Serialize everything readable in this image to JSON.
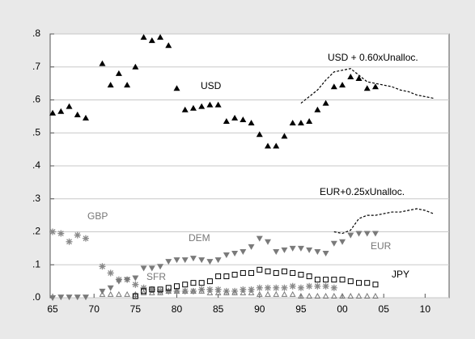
{
  "chart_data": {
    "type": "scatter",
    "xlim": [
      1964.7,
      2012.9
    ],
    "ylim": [
      0,
      0.8
    ],
    "grid": true,
    "xticks": [
      {
        "value": 1965,
        "label": "65"
      },
      {
        "value": 1970,
        "label": "70"
      },
      {
        "value": 1975,
        "label": "75"
      },
      {
        "value": 1980,
        "label": "80"
      },
      {
        "value": 1985,
        "label": "85"
      },
      {
        "value": 1990,
        "label": "90"
      },
      {
        "value": 1995,
        "label": "95"
      },
      {
        "value": 2000,
        "label": "00"
      },
      {
        "value": 2005,
        "label": "05"
      },
      {
        "value": 2010,
        "label": "10"
      }
    ],
    "yticks": [
      {
        "value": 0,
        "label": ".0"
      },
      {
        "value": 0.1,
        "label": ".1"
      },
      {
        "value": 0.2,
        "label": ".2"
      },
      {
        "value": 0.3,
        "label": ".3"
      },
      {
        "value": 0.4,
        "label": ".4"
      },
      {
        "value": 0.5,
        "label": ".5"
      },
      {
        "value": 0.6,
        "label": ".6"
      },
      {
        "value": 0.7,
        "label": ".7"
      },
      {
        "value": 0.8,
        "label": ".8"
      }
    ],
    "series": [
      {
        "name": "USD",
        "color": "#000000",
        "marker": "triangle-up",
        "x": [
          1965,
          1966,
          1967,
          1968,
          1969,
          1971,
          1972,
          1973,
          1974,
          1975,
          1976,
          1977,
          1978,
          1979,
          1980,
          1981,
          1982,
          1983,
          1984,
          1985,
          1986,
          1987,
          1988,
          1989,
          1990,
          1991,
          1992,
          1993,
          1994,
          1995,
          1996,
          1997,
          1998,
          1999,
          2000,
          2001,
          2002,
          2003,
          2004
        ],
        "values": [
          0.56,
          0.565,
          0.58,
          0.555,
          0.545,
          0.71,
          0.645,
          0.68,
          0.645,
          0.7,
          0.79,
          0.78,
          0.79,
          0.765,
          0.635,
          0.57,
          0.575,
          0.58,
          0.585,
          0.585,
          0.535,
          0.545,
          0.54,
          0.53,
          0.495,
          0.46,
          0.46,
          0.49,
          0.53,
          0.53,
          0.535,
          0.57,
          0.59,
          0.64,
          0.645,
          0.67,
          0.665,
          0.635,
          0.64
        ]
      },
      {
        "name": "USD + 0.60xUnalloc.",
        "color": "#000000",
        "marker": "dashed",
        "x": [
          1995,
          1996,
          1997,
          1998,
          1999,
          2000,
          2001,
          2002,
          2003,
          2004,
          2005,
          2006,
          2007,
          2008,
          2009,
          2010,
          2011
        ],
        "values": [
          0.59,
          0.61,
          0.63,
          0.66,
          0.685,
          0.69,
          0.695,
          0.675,
          0.655,
          0.65,
          0.645,
          0.64,
          0.63,
          0.625,
          0.615,
          0.61,
          0.605
        ]
      },
      {
        "name": "EUR+0.25xUnalloc.",
        "color": "#000000",
        "marker": "dashed",
        "x": [
          1999,
          2000,
          2001,
          2002,
          2003,
          2004,
          2005,
          2006,
          2007,
          2008,
          2009,
          2010,
          2011
        ],
        "values": [
          0.2,
          0.195,
          0.205,
          0.24,
          0.25,
          0.25,
          0.255,
          0.26,
          0.26,
          0.265,
          0.27,
          0.265,
          0.255
        ]
      },
      {
        "name": "GBP",
        "color": "#8a8a8a",
        "marker": "asterisk",
        "x": [
          1965,
          1966,
          1967,
          1968,
          1969,
          1971,
          1972,
          1973,
          1974,
          1975,
          1976,
          1977,
          1978,
          1979,
          1980,
          1981,
          1982,
          1983,
          1984,
          1985,
          1986,
          1987,
          1988,
          1989,
          1990,
          1991,
          1992,
          1993,
          1994,
          1995,
          1996,
          1997,
          1998,
          1999
        ],
        "values": [
          0.2,
          0.195,
          0.17,
          0.19,
          0.18,
          0.095,
          0.075,
          0.055,
          0.055,
          0.04,
          0.03,
          0.025,
          0.02,
          0.02,
          0.02,
          0.02,
          0.02,
          0.025,
          0.025,
          0.025,
          0.02,
          0.02,
          0.025,
          0.025,
          0.03,
          0.03,
          0.03,
          0.03,
          0.035,
          0.03,
          0.035,
          0.035,
          0.035,
          0.03
        ]
      },
      {
        "name": "DEM",
        "color": "#7a7a7a",
        "marker": "triangle-down",
        "x": [
          1965,
          1966,
          1967,
          1968,
          1969,
          1971,
          1972,
          1973,
          1974,
          1975,
          1976,
          1977,
          1978,
          1979,
          1980,
          1981,
          1982,
          1983,
          1984,
          1985,
          1986,
          1987,
          1988,
          1989,
          1990,
          1991,
          1992,
          1993,
          1994,
          1995,
          1996,
          1997,
          1998
        ],
        "values": [
          0,
          0.002,
          0.002,
          0.002,
          0.002,
          0.02,
          0.03,
          0.05,
          0.055,
          0.06,
          0.09,
          0.09,
          0.095,
          0.11,
          0.115,
          0.115,
          0.12,
          0.115,
          0.11,
          0.115,
          0.13,
          0.135,
          0.14,
          0.155,
          0.18,
          0.17,
          0.14,
          0.145,
          0.15,
          0.15,
          0.145,
          0.14,
          0.135
        ]
      },
      {
        "name": "EUR",
        "color": "#7a7a7a",
        "marker": "triangle-down",
        "x": [
          1999,
          2000,
          2001,
          2002,
          2003,
          2004
        ],
        "values": [
          0.165,
          0.17,
          0.19,
          0.195,
          0.195,
          0.195
        ]
      },
      {
        "name": "SFR",
        "color": "#7a7a7a",
        "marker": "triangle-open",
        "x": [
          1971,
          1972,
          1973,
          1974,
          1975,
          1976,
          1977,
          1978,
          1979,
          1980,
          1981,
          1982,
          1983,
          1984,
          1985,
          1986,
          1987,
          1988,
          1989,
          1990,
          1991,
          1992,
          1993,
          1994,
          1995,
          1996,
          1997,
          1998,
          1999,
          2000,
          2001,
          2002,
          2003,
          2004
        ],
        "values": [
          0.01,
          0.01,
          0.01,
          0.01,
          0.01,
          0.015,
          0.015,
          0.015,
          0.02,
          0.02,
          0.02,
          0.02,
          0.02,
          0.015,
          0.015,
          0.015,
          0.015,
          0.015,
          0.015,
          0.01,
          0.01,
          0.01,
          0.01,
          0.01,
          0.005,
          0.005,
          0.005,
          0.005,
          0.005,
          0.005,
          0.005,
          0.005,
          0.005,
          0.005
        ]
      },
      {
        "name": "JPY",
        "color": "#000000",
        "marker": "square-open",
        "x": [
          1975,
          1976,
          1977,
          1978,
          1979,
          1980,
          1981,
          1982,
          1983,
          1984,
          1985,
          1986,
          1987,
          1988,
          1989,
          1990,
          1991,
          1992,
          1993,
          1994,
          1995,
          1996,
          1997,
          1998,
          1999,
          2000,
          2001,
          2002,
          2003,
          2004
        ],
        "values": [
          0.005,
          0.02,
          0.025,
          0.025,
          0.03,
          0.035,
          0.04,
          0.045,
          0.045,
          0.05,
          0.065,
          0.065,
          0.07,
          0.075,
          0.075,
          0.085,
          0.08,
          0.075,
          0.08,
          0.075,
          0.07,
          0.065,
          0.055,
          0.055,
          0.055,
          0.055,
          0.05,
          0.045,
          0.045,
          0.04
        ]
      }
    ]
  }
}
